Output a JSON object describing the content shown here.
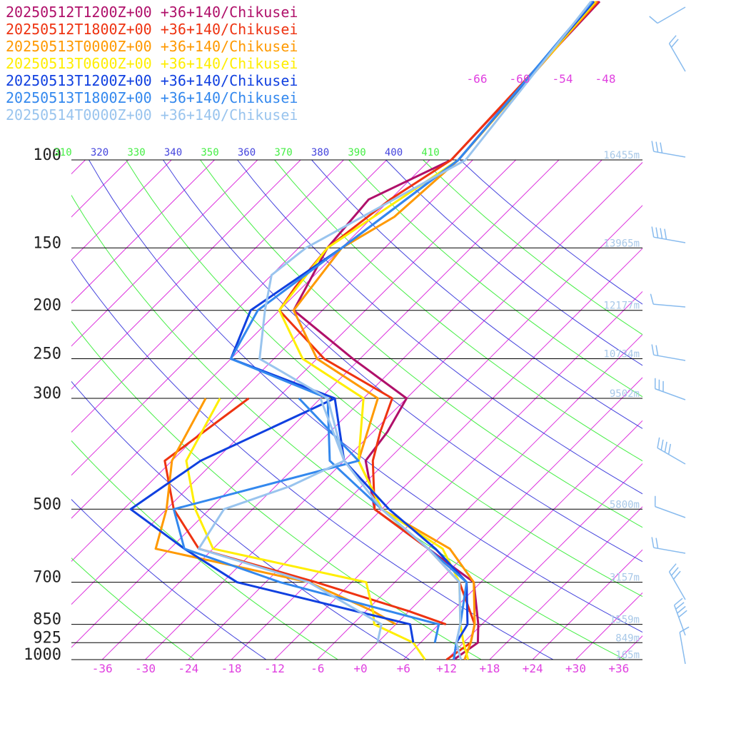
{
  "chart_data": {
    "type": "line",
    "chart_kind": "skew-t",
    "pressure_levels": [
      100,
      150,
      200,
      250,
      300,
      500,
      700,
      850,
      925,
      1000
    ],
    "pressure_labels": [
      "100",
      "150",
      "200",
      "250",
      "300",
      "500",
      "700",
      "850",
      "925",
      "1000"
    ],
    "x_tick_labels": [
      "-36",
      "-30",
      "-24",
      "-18",
      "-12",
      "-6",
      "+0",
      "+6",
      "+12",
      "+18",
      "+24",
      "+30",
      "+36"
    ],
    "x_ticks": [
      -36,
      -30,
      -24,
      -18,
      -12,
      -6,
      0,
      6,
      12,
      18,
      24,
      30,
      36
    ],
    "top_temp_labels": [
      "-66",
      "-60",
      "-54",
      "-48"
    ],
    "theta_labels": [
      {
        "text": "310",
        "color": "#44ee44"
      },
      {
        "text": "320",
        "color": "#4444dd"
      },
      {
        "text": "330",
        "color": "#44ee44"
      },
      {
        "text": "340",
        "color": "#4444dd"
      },
      {
        "text": "350",
        "color": "#44ee44"
      },
      {
        "text": "360",
        "color": "#4444dd"
      },
      {
        "text": "370",
        "color": "#44ee44"
      },
      {
        "text": "380",
        "color": "#4444dd"
      },
      {
        "text": "390",
        "color": "#44ee44"
      },
      {
        "text": "400",
        "color": "#4444dd"
      },
      {
        "text": "410",
        "color": "#44ee44"
      }
    ],
    "height_labels": [
      "16455m",
      "13965m",
      "12177m",
      "10734m",
      "9502m",
      "5800m",
      "3157m",
      "1559m",
      "849m",
      "165m"
    ],
    "series": [
      {
        "name": "20250512T1200Z+00 +36+140/Chikusei",
        "color": "#b0106a",
        "temp": [
          [
            100,
            -57
          ],
          [
            120,
            -63
          ],
          [
            150,
            -62
          ],
          [
            200,
            -58
          ],
          [
            250,
            -43
          ],
          [
            300,
            -30
          ],
          [
            350,
            -28
          ],
          [
            400,
            -27
          ],
          [
            500,
            -19
          ],
          [
            600,
            -6
          ],
          [
            700,
            5
          ],
          [
            850,
            11.5
          ],
          [
            925,
            14
          ],
          [
            1000,
            13
          ]
        ],
        "dew": []
      },
      {
        "name": "20250512T1800Z+00 +36+140/Chikusei",
        "color": "#ee3311",
        "temp": [
          [
            100,
            -57
          ],
          [
            120,
            -60
          ],
          [
            150,
            -62
          ],
          [
            180,
            -61
          ],
          [
            200,
            -60
          ],
          [
            250,
            -47
          ],
          [
            300,
            -32
          ],
          [
            350,
            -29
          ],
          [
            400,
            -26
          ],
          [
            500,
            -19
          ],
          [
            600,
            -6
          ],
          [
            700,
            3
          ],
          [
            850,
            11
          ],
          [
            925,
            13
          ],
          [
            1000,
            12
          ]
        ],
        "dew": [
          [
            300,
            -52
          ],
          [
            400,
            -55
          ],
          [
            500,
            -47
          ],
          [
            600,
            -38
          ],
          [
            700,
            -17
          ],
          [
            800,
            0
          ],
          [
            850,
            7
          ]
        ]
      },
      {
        "name": "20250513T0000Z+00 +36+140/Chikusei",
        "color": "#ff9900",
        "temp": [
          [
            100,
            -56
          ],
          [
            130,
            -57
          ],
          [
            150,
            -60
          ],
          [
            200,
            -58
          ],
          [
            250,
            -48
          ],
          [
            300,
            -34
          ],
          [
            400,
            -28
          ],
          [
            500,
            -18
          ],
          [
            600,
            -3
          ],
          [
            700,
            5
          ],
          [
            850,
            11
          ],
          [
            925,
            13
          ],
          [
            1000,
            14.5
          ]
        ],
        "dew": [
          [
            300,
            -58
          ],
          [
            400,
            -54
          ],
          [
            500,
            -48
          ],
          [
            600,
            -44
          ],
          [
            700,
            -18
          ],
          [
            800,
            -5
          ],
          [
            850,
            0
          ]
        ]
      },
      {
        "name": "20250513T0600Z+00 +36+140/Chikusei",
        "color": "#ffee00",
        "temp": [
          [
            100,
            -56
          ],
          [
            150,
            -62
          ],
          [
            200,
            -60
          ],
          [
            250,
            -50
          ],
          [
            300,
            -36
          ],
          [
            400,
            -28
          ],
          [
            500,
            -18
          ],
          [
            600,
            -4
          ],
          [
            700,
            3
          ],
          [
            850,
            9
          ],
          [
            925,
            12
          ],
          [
            1000,
            15
          ]
        ],
        "dew": [
          [
            300,
            -56
          ],
          [
            400,
            -52
          ],
          [
            500,
            -44
          ],
          [
            600,
            -36
          ],
          [
            700,
            -10
          ],
          [
            800,
            -5
          ],
          [
            850,
            -3
          ],
          [
            925,
            5
          ],
          [
            1000,
            9
          ]
        ]
      },
      {
        "name": "20250513T1200Z+00 +36+140/Chikusei",
        "color": "#1040e0",
        "temp": [
          [
            100,
            -56
          ],
          [
            150,
            -60
          ],
          [
            200,
            -64
          ],
          [
            250,
            -60
          ],
          [
            300,
            -40
          ],
          [
            400,
            -30
          ],
          [
            500,
            -17
          ],
          [
            600,
            -5
          ],
          [
            700,
            4
          ],
          [
            850,
            10
          ],
          [
            925,
            11
          ],
          [
            1000,
            13
          ]
        ],
        "dew": [
          [
            300,
            -40
          ],
          [
            400,
            -50
          ],
          [
            500,
            -53
          ],
          [
            600,
            -40
          ],
          [
            700,
            -28
          ],
          [
            850,
            2
          ],
          [
            925,
            5
          ]
        ]
      },
      {
        "name": "20250513T1800Z+00 +36+140/Chikusei",
        "color": "#3388ee",
        "temp": [
          [
            100,
            -56
          ],
          [
            150,
            -60
          ],
          [
            200,
            -63
          ],
          [
            250,
            -60
          ],
          [
            300,
            -41
          ],
          [
            400,
            -32
          ],
          [
            500,
            -18
          ],
          [
            600,
            -6
          ],
          [
            700,
            4
          ],
          [
            850,
            9
          ],
          [
            925,
            11
          ],
          [
            1000,
            13
          ]
        ],
        "dew": [
          [
            300,
            -45
          ],
          [
            400,
            -28
          ],
          [
            500,
            -47
          ],
          [
            600,
            -40
          ],
          [
            700,
            -22
          ],
          [
            850,
            6
          ],
          [
            925,
            8
          ]
        ]
      },
      {
        "name": "20250514T0000Z+00 +36+140/Chikusei",
        "color": "#99c4ee",
        "temp": [
          [
            100,
            -55
          ],
          [
            150,
            -65
          ],
          [
            170,
            -66
          ],
          [
            200,
            -62
          ],
          [
            250,
            -56
          ],
          [
            300,
            -41
          ],
          [
            400,
            -30
          ],
          [
            500,
            -18
          ],
          [
            600,
            -6
          ],
          [
            700,
            3
          ],
          [
            850,
            9
          ],
          [
            925,
            11
          ],
          [
            1000,
            14
          ]
        ],
        "dew": [
          [
            300,
            -42
          ],
          [
            400,
            -30
          ],
          [
            450,
            -34
          ],
          [
            500,
            -40
          ],
          [
            600,
            -38
          ],
          [
            700,
            -18
          ],
          [
            850,
            -2
          ],
          [
            925,
            0
          ]
        ]
      }
    ]
  }
}
